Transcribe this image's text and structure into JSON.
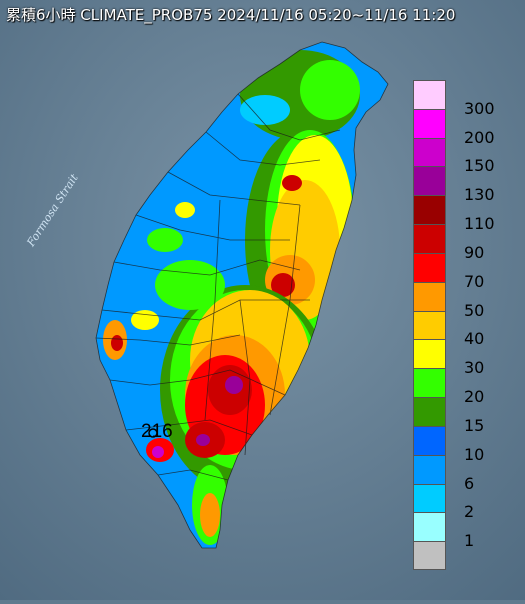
{
  "title": "累積6小時 CLIMATE_PROB75 2024/11/16 05:20~11/16 11:20",
  "sea_label": "Formosa Strait",
  "max_value_label": "216",
  "legend": {
    "bins": [
      {
        "label": "300",
        "color": "#ffccff"
      },
      {
        "label": "200",
        "color": "#ff00ff"
      },
      {
        "label": "150",
        "color": "#cc00cc"
      },
      {
        "label": "130",
        "color": "#990099"
      },
      {
        "label": "110",
        "color": "#990000"
      },
      {
        "label": "90",
        "color": "#cc0000"
      },
      {
        "label": "70",
        "color": "#ff0000"
      },
      {
        "label": "50",
        "color": "#ff9900"
      },
      {
        "label": "40",
        "color": "#ffcc00"
      },
      {
        "label": "30",
        "color": "#ffff00"
      },
      {
        "label": "20",
        "color": "#33ff00"
      },
      {
        "label": "15",
        "color": "#339900"
      },
      {
        "label": "10",
        "color": "#0066ff"
      },
      {
        "label": "6",
        "color": "#0099ff"
      },
      {
        "label": "2",
        "color": "#00ccff"
      },
      {
        "label": "1",
        "color": "#99ffff"
      },
      {
        "label": "",
        "color": "#c0c0c0"
      }
    ]
  }
}
